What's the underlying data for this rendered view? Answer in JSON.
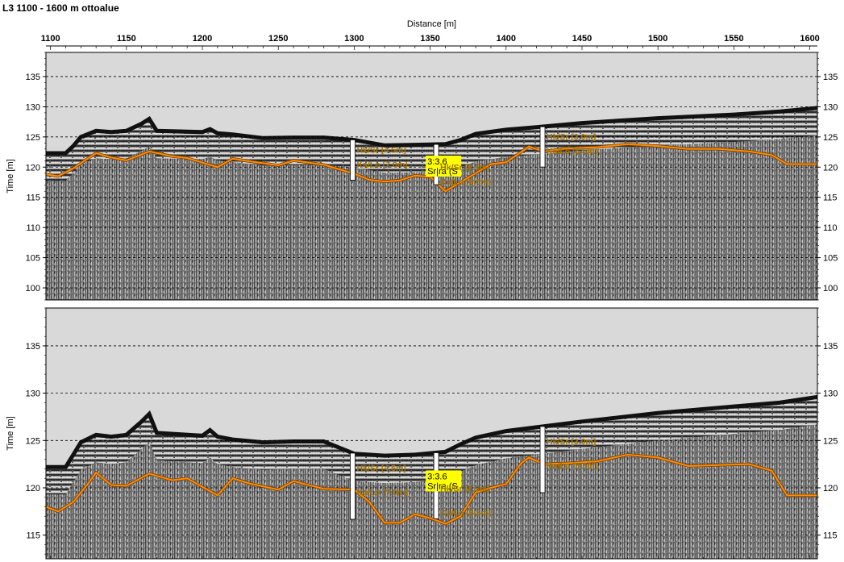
{
  "title": "L3 1100 - 1600 m ottoalue",
  "colors": {
    "sky": "#d9d9d9",
    "horizon": "#ff8c00",
    "horizon_dark": "#7a3c00",
    "label": "#a07000",
    "sample_box": "#ffff00",
    "radargram_base": "#808080"
  },
  "chart_data": {
    "type": "line",
    "title": "L3 1100 - 1600 m ottoalue",
    "xlabel": "Distance [m]",
    "x_ticks": [
      1100,
      1150,
      1200,
      1250,
      1300,
      1350,
      1400,
      1450,
      1500,
      1550,
      1600
    ],
    "xlim": [
      1097,
      1605
    ],
    "grid": true,
    "panels": [
      {
        "ylabel": "Time [m]",
        "ylim": [
          98,
          139
        ],
        "y_ticks": [
          100,
          105,
          110,
          115,
          120,
          125,
          130,
          135
        ],
        "surface": {
          "x": [
            1097,
            1110,
            1115,
            1120,
            1130,
            1140,
            1150,
            1160,
            1165,
            1170,
            1200,
            1205,
            1210,
            1220,
            1240,
            1260,
            1280,
            1300,
            1320,
            1340,
            1360,
            1370,
            1380,
            1400,
            1420,
            1450,
            1500,
            1550,
            1580,
            1605
          ],
          "y": [
            122.3,
            122.3,
            123.5,
            125.0,
            126.0,
            125.8,
            126.0,
            127.2,
            128.0,
            126.0,
            125.8,
            126.3,
            125.6,
            125.4,
            124.8,
            124.9,
            124.9,
            124.5,
            123.6,
            123.7,
            123.8,
            124.5,
            125.5,
            126.2,
            126.6,
            127.3,
            128.1,
            128.7,
            129.2,
            129.8
          ]
        },
        "horizon": {
          "name": "",
          "x": [
            1097,
            1105,
            1115,
            1125,
            1130,
            1140,
            1150,
            1165,
            1180,
            1190,
            1210,
            1220,
            1230,
            1250,
            1260,
            1280,
            1300,
            1310,
            1320,
            1330,
            1340,
            1350,
            1360,
            1370,
            1380,
            1390,
            1400,
            1410,
            1415,
            1425,
            1440,
            1460,
            1480,
            1500,
            1520,
            1540,
            1560,
            1575,
            1585,
            1605
          ],
          "y": [
            118.8,
            118.5,
            119.8,
            121.5,
            122.3,
            121.6,
            121.1,
            122.6,
            121.8,
            121.5,
            120.0,
            121.4,
            121.0,
            120.3,
            121.1,
            120.4,
            118.9,
            117.9,
            117.6,
            117.8,
            118.6,
            118.4,
            116.0,
            117.5,
            119.0,
            120.5,
            120.8,
            122.5,
            123.4,
            122.6,
            123.1,
            123.3,
            123.8,
            123.5,
            123.0,
            123.0,
            122.6,
            122.0,
            120.5,
            120.5
          ]
        }
      },
      {
        "ylabel": "Time [m]",
        "ylim": [
          112.5,
          139
        ],
        "y_ticks": [
          115,
          120,
          125,
          130,
          135
        ],
        "surface": {
          "x": [
            1097,
            1110,
            1115,
            1120,
            1130,
            1140,
            1150,
            1160,
            1165,
            1170,
            1200,
            1205,
            1210,
            1220,
            1240,
            1260,
            1280,
            1300,
            1320,
            1340,
            1360,
            1370,
            1380,
            1400,
            1420,
            1450,
            1500,
            1550,
            1580,
            1605
          ],
          "y": [
            122.2,
            122.2,
            123.5,
            124.8,
            125.6,
            125.4,
            125.6,
            127.0,
            127.8,
            125.8,
            125.5,
            126.1,
            125.4,
            125.1,
            124.8,
            124.9,
            124.9,
            123.6,
            123.4,
            123.5,
            123.8,
            124.6,
            125.3,
            126.0,
            126.4,
            127.0,
            127.9,
            128.6,
            129.0,
            129.6
          ]
        },
        "horizon": {
          "name": "",
          "x": [
            1097,
            1105,
            1115,
            1125,
            1130,
            1140,
            1150,
            1165,
            1180,
            1190,
            1210,
            1220,
            1230,
            1250,
            1260,
            1280,
            1300,
            1310,
            1320,
            1330,
            1340,
            1350,
            1360,
            1370,
            1380,
            1390,
            1400,
            1410,
            1415,
            1425,
            1440,
            1460,
            1480,
            1500,
            1520,
            1540,
            1560,
            1575,
            1585,
            1605
          ],
          "y": [
            118.0,
            117.5,
            118.5,
            120.5,
            121.6,
            120.3,
            120.2,
            121.5,
            120.8,
            121.0,
            119.2,
            121.0,
            120.5,
            119.8,
            120.7,
            119.9,
            119.8,
            118.5,
            116.3,
            116.3,
            117.2,
            116.8,
            116.2,
            117.0,
            119.5,
            120.0,
            120.4,
            122.6,
            123.2,
            122.5,
            122.6,
            122.8,
            123.5,
            123.2,
            122.3,
            122.4,
            122.5,
            121.8,
            119.2,
            119.2
          ]
        }
      }
    ],
    "boreholes": [
      {
        "x": 1299,
        "labels": [
          "Hk/Sr [4.5m]",
          "Ka/Lo [7.0m]"
        ],
        "sample": null
      },
      {
        "x": 1354,
        "labels": [
          "Hk/Sr [6.5m]",
          "Ka/Lo [8.5m]"
        ],
        "sample": [
          "3:3.6",
          "Sr|ra (S"
        ]
      },
      {
        "x": 1424,
        "labels": [
          "Hk/Sr [3.0m]",
          "Ka/Lo [5.5m]"
        ],
        "sample": null
      }
    ]
  }
}
